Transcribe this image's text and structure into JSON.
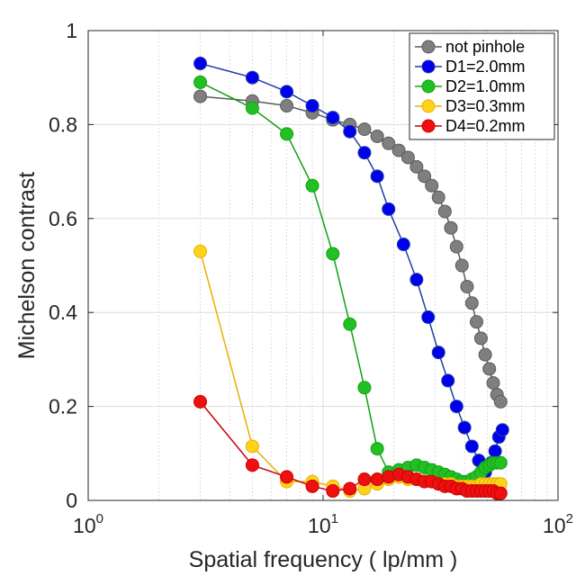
{
  "chart_data": {
    "type": "scatter",
    "xscale": "log",
    "xlabel": "Spatial frequency ( lp/mm )",
    "ylabel": "Michelson contrast",
    "xlim": [
      1,
      100
    ],
    "ylim": [
      0,
      1
    ],
    "x_ticks": [
      {
        "base": "10",
        "exp": "0",
        "value": 1
      },
      {
        "base": "10",
        "exp": "1",
        "value": 10
      },
      {
        "base": "10",
        "exp": "2",
        "value": 100
      }
    ],
    "y_ticks": [
      {
        "label": "0",
        "value": 0
      },
      {
        "label": "0.2",
        "value": 0.2
      },
      {
        "label": "0.4",
        "value": 0.4
      },
      {
        "label": "0.6",
        "value": 0.6
      },
      {
        "label": "0.8",
        "value": 0.8
      },
      {
        "label": "1",
        "value": 1
      }
    ],
    "grid": true,
    "legend_position": "top-right",
    "series": [
      {
        "name": "not pinhole",
        "line_color": "#5a5a5a",
        "marker_color": "#7f7f7f",
        "x": [
          3,
          5,
          7,
          9,
          11,
          13,
          15,
          17,
          19,
          21,
          23,
          25,
          27,
          29,
          31,
          33,
          35,
          37,
          39,
          41,
          43,
          45,
          47,
          49,
          51,
          53,
          55,
          57
        ],
        "y": [
          0.86,
          0.85,
          0.84,
          0.825,
          0.81,
          0.8,
          0.79,
          0.775,
          0.76,
          0.745,
          0.73,
          0.71,
          0.69,
          0.67,
          0.645,
          0.615,
          0.58,
          0.54,
          0.5,
          0.455,
          0.42,
          0.38,
          0.345,
          0.31,
          0.28,
          0.25,
          0.225,
          0.21
        ]
      },
      {
        "name": "D1=2.0mm",
        "line_color": "#1f3f9f",
        "marker_color": "#0000ee",
        "x": [
          3,
          5,
          7,
          9,
          11,
          13,
          15,
          17,
          19,
          22,
          25,
          28,
          31,
          34,
          37,
          40,
          43,
          46,
          49,
          52,
          54,
          56,
          58
        ],
        "y": [
          0.93,
          0.9,
          0.87,
          0.84,
          0.815,
          0.785,
          0.74,
          0.69,
          0.62,
          0.545,
          0.47,
          0.39,
          0.315,
          0.255,
          0.2,
          0.155,
          0.115,
          0.085,
          0.06,
          0.08,
          0.105,
          0.135,
          0.15
        ]
      },
      {
        "name": "D2=1.0mm",
        "line_color": "#12a012",
        "marker_color": "#22c022",
        "x": [
          3,
          5,
          7,
          9,
          11,
          13,
          15,
          17,
          19,
          21,
          23,
          25,
          27,
          29,
          31,
          33,
          35,
          37,
          39,
          41,
          43,
          45,
          47,
          49,
          51,
          53,
          55,
          57
        ],
        "y": [
          0.89,
          0.835,
          0.78,
          0.67,
          0.525,
          0.375,
          0.24,
          0.11,
          0.06,
          0.065,
          0.07,
          0.075,
          0.07,
          0.065,
          0.06,
          0.055,
          0.05,
          0.045,
          0.04,
          0.04,
          0.045,
          0.05,
          0.06,
          0.07,
          0.075,
          0.08,
          0.08,
          0.08
        ]
      },
      {
        "name": "D3=0.3mm",
        "line_color": "#e8b000",
        "marker_color": "#ffd21a",
        "x": [
          3,
          5,
          7,
          9,
          11,
          13,
          15,
          17,
          19,
          21,
          23,
          25,
          27,
          29,
          31,
          33,
          35,
          37,
          39,
          41,
          43,
          45,
          47,
          49,
          51,
          53,
          55,
          57
        ],
        "y": [
          0.53,
          0.115,
          0.04,
          0.04,
          0.03,
          0.02,
          0.025,
          0.035,
          0.045,
          0.05,
          0.045,
          0.045,
          0.04,
          0.04,
          0.035,
          0.035,
          0.035,
          0.03,
          0.03,
          0.03,
          0.03,
          0.03,
          0.035,
          0.035,
          0.035,
          0.035,
          0.035,
          0.035
        ]
      },
      {
        "name": "D4=0.2mm",
        "line_color": "#cc0000",
        "marker_color": "#ee1010",
        "x": [
          3,
          5,
          7,
          9,
          11,
          13,
          15,
          17,
          19,
          21,
          23,
          25,
          27,
          29,
          31,
          33,
          35,
          37,
          39,
          41,
          43,
          45,
          47,
          49,
          51,
          53,
          55,
          57
        ],
        "y": [
          0.21,
          0.075,
          0.05,
          0.03,
          0.02,
          0.025,
          0.045,
          0.045,
          0.05,
          0.055,
          0.05,
          0.045,
          0.04,
          0.04,
          0.035,
          0.03,
          0.03,
          0.025,
          0.025,
          0.02,
          0.02,
          0.02,
          0.02,
          0.02,
          0.02,
          0.02,
          0.015,
          0.015
        ]
      }
    ]
  }
}
